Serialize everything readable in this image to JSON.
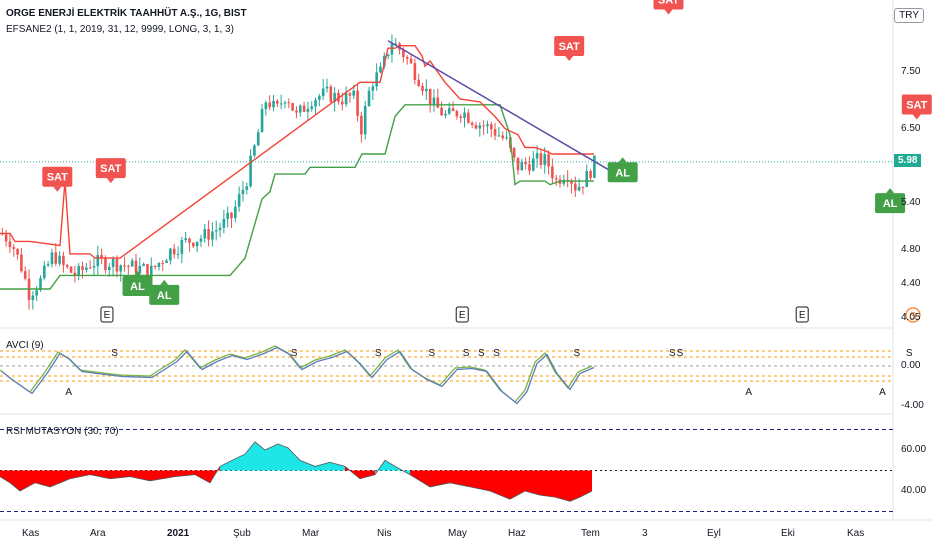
{
  "header": {
    "title": "ORGE ENERJİ ELEKTRİK TAAHHÜT A.Ş., 1G, BIST",
    "indicator": "EFSANE2 (1, 1, 2019, 31, 12, 9999, LONG, 3, 1, 3)",
    "currency": "TRY"
  },
  "colors": {
    "up": "#26a69a",
    "down": "#ef5350",
    "support": "#43a047",
    "resistance": "#f44336",
    "trend": "#5b4ca6",
    "avci_blue": "#5c7dbe",
    "avci_green": "#7cb342",
    "rsi_fill_up": "#1ee6e6",
    "rsi_fill_down": "#ff0000",
    "price_line": "#22ab94"
  },
  "price_tag": "5.98",
  "chart_data": [
    {
      "type": "candlestick",
      "title": "ORGE ENERJİ ELEKTRİK TAAHHÜT A.Ş., 1G, BIST",
      "y_ticks": [
        "7.50",
        "6.50",
        "5.40",
        "4.80",
        "4.40",
        "4.05"
      ],
      "y_tick_values": [
        7.5,
        6.5,
        5.4,
        4.8,
        4.4,
        4.05
      ],
      "y_scale": "log",
      "ylim": [
        3.95,
        8.55
      ],
      "last_price": 5.98,
      "signals": [
        {
          "label": "SAT",
          "x": "2020-11-03",
          "price": 5.55
        },
        {
          "label": "SAT",
          "x": "2020-11-17",
          "price": 5.67
        },
        {
          "label": "AL",
          "x": "2020-11-24",
          "price": 4.55
        },
        {
          "label": "AL",
          "x": "2020-12-01",
          "price": 4.45
        },
        {
          "label": "SAT",
          "x": "2021-03-17",
          "price": 7.7
        },
        {
          "label": "AL",
          "x": "2021-03-31",
          "price": 6.05
        },
        {
          "label": "SAT",
          "x": "2021-04-12",
          "price": 8.65
        },
        {
          "label": "AL",
          "x": "2021-06-09",
          "price": 5.6
        },
        {
          "label": "SAT",
          "x": "2021-06-16",
          "price": 6.65
        }
      ],
      "events": [
        {
          "label": "E",
          "x": "2020-11-16"
        },
        {
          "label": "E",
          "x": "2021-02-17"
        },
        {
          "label": "E",
          "x": "2021-05-17"
        },
        {
          "label": "S",
          "x": "2021-06-15"
        }
      ]
    },
    {
      "type": "line",
      "title": "AVCI (9)",
      "y_ticks": [
        "0.00",
        "-4.00"
      ],
      "markers": [
        {
          "label": "A",
          "x": "2020-11-06"
        },
        {
          "label": "S",
          "x": "2020-11-18"
        },
        {
          "label": "S",
          "x": "2021-01-04"
        },
        {
          "label": "S",
          "x": "2021-01-26"
        },
        {
          "label": "S",
          "x": "2021-02-09"
        },
        {
          "label": "S",
          "x": "2021-02-18"
        },
        {
          "label": "S",
          "x": "2021-02-22"
        },
        {
          "label": "S",
          "x": "2021-02-26"
        },
        {
          "label": "S",
          "x": "2021-03-19"
        },
        {
          "label": "S",
          "x": "2021-04-13"
        },
        {
          "label": "S",
          "x": "2021-04-15"
        },
        {
          "label": "A",
          "x": "2021-05-03"
        },
        {
          "label": "A",
          "x": "2021-06-07"
        },
        {
          "label": "S",
          "x": "2021-06-14"
        },
        {
          "label": "A",
          "x": "2021-06-25"
        }
      ]
    },
    {
      "type": "area",
      "title": "RSI MUTASYON (30, 70)",
      "y_ticks": [
        "60.00",
        "40.00"
      ],
      "levels": [
        70,
        50,
        30
      ]
    }
  ],
  "x_axis": {
    "labels": [
      "Kas",
      "Ara",
      "2021",
      "Şub",
      "Mar",
      "Nis",
      "May",
      "Haz",
      "Tem",
      "3",
      "Eyl",
      "Eki",
      "Kas"
    ]
  }
}
